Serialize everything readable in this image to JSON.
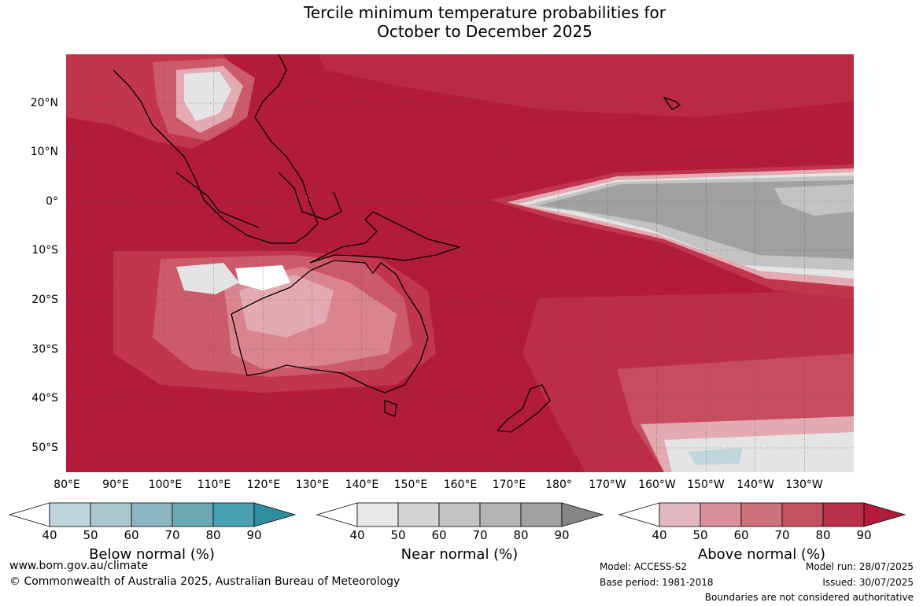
{
  "title": {
    "line1": "Tercile minimum temperature probabilities for",
    "line2": "October to December 2025"
  },
  "map": {
    "latitude_labels": [
      "20°N",
      "10°N",
      "0°",
      "10°S",
      "20°S",
      "30°S",
      "40°S",
      "50°S"
    ],
    "longitude_labels": [
      "80°E",
      "90°E",
      "100°E",
      "110°E",
      "120°E",
      "130°E",
      "140°E",
      "150°E",
      "160°E",
      "170°E",
      "180°",
      "170°W",
      "160°W",
      "150°W",
      "140°W",
      "130°W"
    ],
    "colors": {
      "above_90": "#b21c3a",
      "above_80": "#c1364d",
      "above_70": "#cd5a6a",
      "above_60": "#d9848f",
      "above_50": "#e3aab2",
      "near_90": "#a1a1a1",
      "near_70": "#c3c3c3",
      "near_50": "#e4e4e4",
      "below_60": "#bfd6dc"
    }
  },
  "legends": [
    {
      "title": "Below normal (%)",
      "ticks": [
        "40",
        "50",
        "60",
        "70",
        "80",
        "90"
      ],
      "colors": [
        "#ffffff",
        "#bed5db",
        "#a8c8ce",
        "#8bb6c1",
        "#6ba8b4",
        "#48a0b0",
        "#2e8ea1"
      ]
    },
    {
      "title": "Near normal (%)",
      "ticks": [
        "40",
        "50",
        "60",
        "70",
        "80",
        "90"
      ],
      "colors": [
        "#ffffff",
        "#e8e8e8",
        "#d4d4d4",
        "#c3c3c3",
        "#b3b3b3",
        "#a0a0a0",
        "#858585"
      ]
    },
    {
      "title": "Above normal (%)",
      "ticks": [
        "40",
        "50",
        "60",
        "70",
        "80",
        "90"
      ],
      "colors": [
        "#ffffff",
        "#e3b7bf",
        "#d78f99",
        "#cc737c",
        "#c25360",
        "#ba3249",
        "#b21c3a"
      ]
    }
  ],
  "footer": {
    "website": "www.bom.gov.au/climate",
    "copyright": "© Commonwealth of Australia 2025, Australian Bureau of Meteorology",
    "model": "Model: ACCESS-S2",
    "base_period": "Base period: 1981-2018",
    "model_run": "Model run: 28/07/2025",
    "issued": "Issued: 30/07/2025",
    "disclaimer": "Boundaries are not considered authoritative"
  }
}
